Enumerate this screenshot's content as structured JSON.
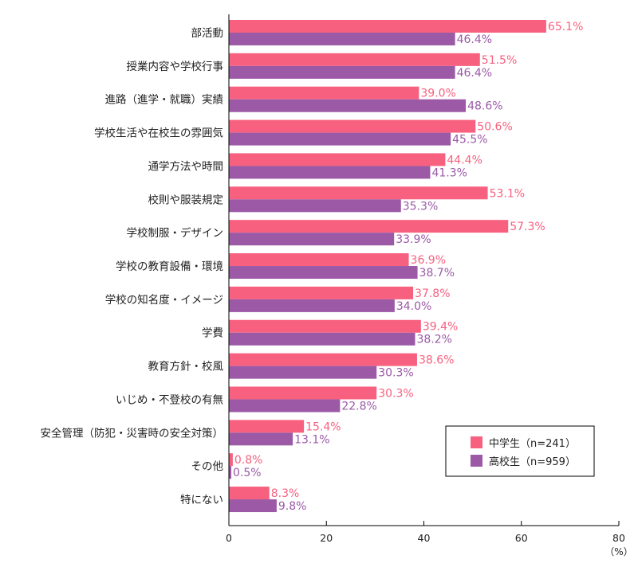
{
  "chart_data": {
    "type": "bar",
    "orientation": "horizontal",
    "categories": [
      "部活動",
      "授業内容や学校行事",
      "進路（進学・就職）実績",
      "学校生活や在校生の雰囲気",
      "通学方法や時間",
      "校則や服装規定",
      "学校制服・デザイン",
      "学校の教育設備・環境",
      "学校の知名度・イメージ",
      "学費",
      "教育方針・校風",
      "いじめ・不登校の有無",
      "安全管理（防犯・災害時の安全対策）",
      "その他",
      "特にない"
    ],
    "series": [
      {
        "name": "中学生（n=241）",
        "color": "#f7617f",
        "values": [
          65.1,
          51.5,
          39.0,
          50.6,
          44.4,
          53.1,
          57.3,
          36.9,
          37.8,
          39.4,
          38.6,
          30.3,
          15.4,
          0.8,
          8.3
        ]
      },
      {
        "name": "高校生（n=959）",
        "color": "#9b59a6",
        "values": [
          46.4,
          46.4,
          48.6,
          45.5,
          41.3,
          35.3,
          33.9,
          38.7,
          34.0,
          38.2,
          30.3,
          22.8,
          13.1,
          0.5,
          9.8
        ]
      }
    ],
    "xlim": [
      0,
      80
    ],
    "xticks": [
      "0",
      "20",
      "40",
      "60",
      "80"
    ],
    "xunit": "（%）",
    "legend_placement": "bottom-right",
    "grid": false,
    "data_labels": true
  }
}
